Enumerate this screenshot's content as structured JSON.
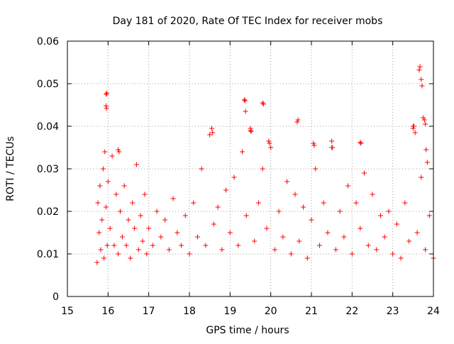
{
  "chart_data": {
    "type": "scatter",
    "title": "Day 181 of 2020, Rate Of TEC Index for receiver mobs",
    "xlabel": "GPS time / hours",
    "ylabel": "ROTI / TECUs",
    "xlim": [
      15,
      24
    ],
    "ylim": [
      0,
      0.06
    ],
    "x_ticks": [
      15,
      16,
      17,
      18,
      19,
      20,
      21,
      22,
      23,
      24
    ],
    "x_tick_labels": [
      "15",
      "16",
      "17",
      "18",
      "19",
      "20",
      "21",
      "22",
      "23",
      "24"
    ],
    "y_ticks": [
      0,
      0.01,
      0.02,
      0.03,
      0.04,
      0.05,
      0.06
    ],
    "y_tick_labels": [
      "0",
      "0.01",
      "0.02",
      "0.03",
      "0.04",
      "0.05",
      "0.06"
    ],
    "grid": true,
    "marker": "+",
    "color": "#ff0000",
    "series": [
      {
        "name": "ROTI",
        "x": [
          15.73,
          15.75,
          15.78,
          15.8,
          15.82,
          15.85,
          15.88,
          15.9,
          15.92,
          15.95,
          15.98,
          16.0,
          16.05,
          16.1,
          16.15,
          16.2,
          16.25,
          16.3,
          16.35,
          16.4,
          16.45,
          16.5,
          16.55,
          16.6,
          16.65,
          16.7,
          16.75,
          16.8,
          16.85,
          16.9,
          16.95,
          17.0,
          17.1,
          17.2,
          17.3,
          17.4,
          17.5,
          17.6,
          17.7,
          17.8,
          17.9,
          18.0,
          18.1,
          18.2,
          18.3,
          18.4,
          18.5,
          18.6,
          18.7,
          18.8,
          18.9,
          19.0,
          19.1,
          19.2,
          19.3,
          19.4,
          19.5,
          19.6,
          19.7,
          19.8,
          19.9,
          20.0,
          20.1,
          20.2,
          20.3,
          20.4,
          20.5,
          20.6,
          20.7,
          20.8,
          20.9,
          21.0,
          21.1,
          21.2,
          21.3,
          21.4,
          21.5,
          21.6,
          21.7,
          21.8,
          21.9,
          22.0,
          22.1,
          22.2,
          22.3,
          22.4,
          22.5,
          22.6,
          22.7,
          22.8,
          22.9,
          23.0,
          23.1,
          23.2,
          23.3,
          23.4,
          23.5,
          23.6,
          23.7,
          23.8,
          23.9,
          24.0,
          15.95,
          15.97,
          15.95,
          15.96,
          16.25,
          16.27,
          18.55,
          18.57,
          19.35,
          19.37,
          19.38,
          19.5,
          19.52,
          19.8,
          19.82,
          19.95,
          19.97,
          20.65,
          20.67,
          21.05,
          21.07,
          21.5,
          21.52,
          22.2,
          22.22,
          23.5,
          23.52,
          23.55,
          23.65,
          23.67,
          23.7,
          23.72,
          23.75,
          23.78,
          23.8,
          23.82,
          23.85
        ],
        "y": [
          0.008,
          0.022,
          0.015,
          0.026,
          0.011,
          0.018,
          0.03,
          0.009,
          0.034,
          0.021,
          0.012,
          0.027,
          0.016,
          0.033,
          0.012,
          0.024,
          0.01,
          0.02,
          0.014,
          0.026,
          0.012,
          0.018,
          0.009,
          0.022,
          0.016,
          0.031,
          0.011,
          0.019,
          0.013,
          0.024,
          0.01,
          0.016,
          0.012,
          0.02,
          0.014,
          0.018,
          0.011,
          0.023,
          0.015,
          0.012,
          0.019,
          0.01,
          0.022,
          0.014,
          0.03,
          0.012,
          0.038,
          0.017,
          0.021,
          0.011,
          0.025,
          0.015,
          0.028,
          0.012,
          0.034,
          0.019,
          0.039,
          0.013,
          0.022,
          0.03,
          0.016,
          0.035,
          0.011,
          0.02,
          0.014,
          0.027,
          0.01,
          0.024,
          0.013,
          0.021,
          0.009,
          0.018,
          0.03,
          0.012,
          0.022,
          0.015,
          0.035,
          0.011,
          0.02,
          0.014,
          0.026,
          0.01,
          0.022,
          0.016,
          0.029,
          0.012,
          0.024,
          0.011,
          0.019,
          0.014,
          0.02,
          0.01,
          0.017,
          0.009,
          0.022,
          0.013,
          0.04,
          0.015,
          0.028,
          0.011,
          0.019,
          0.009,
          0.0475,
          0.0478,
          0.0448,
          0.0442,
          0.0345,
          0.034,
          0.0395,
          0.0385,
          0.0462,
          0.046,
          0.0435,
          0.0395,
          0.0388,
          0.0455,
          0.0452,
          0.0365,
          0.036,
          0.041,
          0.0415,
          0.036,
          0.0355,
          0.0365,
          0.035,
          0.0362,
          0.036,
          0.0395,
          0.04,
          0.0385,
          0.0532,
          0.054,
          0.051,
          0.0495,
          0.042,
          0.0415,
          0.0405,
          0.0345,
          0.0315
        ]
      }
    ]
  }
}
